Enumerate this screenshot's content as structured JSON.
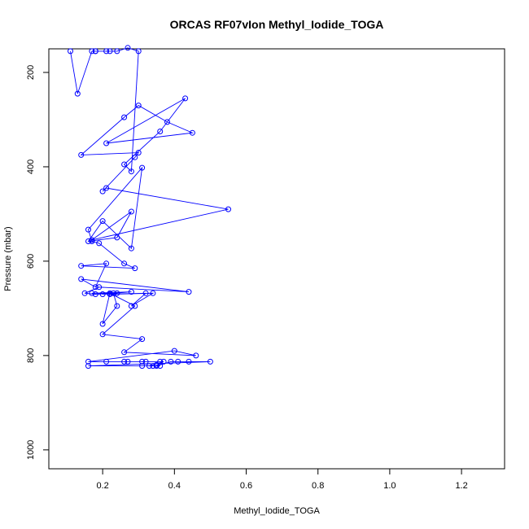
{
  "chart_data": {
    "type": "scatter",
    "title": "ORCAS RF07vIon Methyl_Iodide_TOGA",
    "xlabel": "Methyl_Iodide_TOGA",
    "ylabel": "Pressure (mbar)",
    "xlim": [
      0.05,
      1.32
    ],
    "ylim": [
      1040,
      150
    ],
    "xticks": [
      0.2,
      0.4,
      0.6,
      0.8,
      1.0,
      1.2
    ],
    "xtick_labels": [
      "0.2",
      "0.4",
      "0.6",
      "0.8",
      "1.0",
      "1.2"
    ],
    "yticks": [
      200,
      400,
      600,
      800,
      1000
    ],
    "ytick_labels": [
      "200",
      "400",
      "600",
      "800",
      "1000"
    ],
    "grid": false,
    "legend": "none",
    "series_color": "#0000ff",
    "series": [
      {
        "x": [
          0.11,
          0.13,
          0.17,
          0.18,
          0.21,
          0.18,
          0.22,
          0.24,
          0.27,
          0.3,
          0.28,
          0.26,
          0.36,
          0.43,
          0.21,
          0.45,
          0.38,
          0.3,
          0.26,
          0.14,
          0.3,
          0.29,
          0.2,
          0.21,
          0.55,
          0.17,
          0.28,
          0.24,
          0.16,
          0.2,
          0.28,
          0.31,
          0.16,
          0.17,
          0.19,
          0.26,
          0.29,
          0.14,
          0.21,
          0.18,
          0.14,
          0.44,
          0.19,
          0.15,
          0.18,
          0.24,
          0.17,
          0.28,
          0.2,
          0.32,
          0.28,
          0.34,
          0.22,
          0.23,
          0.24,
          0.2,
          0.22,
          0.29,
          0.2,
          0.31,
          0.26,
          0.46,
          0.4,
          0.16,
          0.21,
          0.27,
          0.32,
          0.26,
          0.31,
          0.36,
          0.37,
          0.33,
          0.35,
          0.39,
          0.44,
          0.41,
          0.5,
          0.16,
          0.31,
          0.34,
          0.36,
          0.35
        ],
        "y": [
          155,
          245,
          155,
          155,
          155,
          155,
          155,
          155,
          148,
          155,
          410,
          395,
          325,
          255,
          350,
          328,
          305,
          270,
          295,
          375,
          370,
          380,
          452,
          445,
          490,
          555,
          495,
          550,
          558,
          515,
          573,
          402,
          533,
          558,
          562,
          605,
          615,
          610,
          605,
          655,
          638,
          665,
          655,
          668,
          670,
          668,
          668,
          665,
          670,
          668,
          695,
          668,
          670,
          668,
          695,
          733,
          668,
          695,
          755,
          765,
          793,
          800,
          790,
          813,
          813,
          813,
          813,
          813,
          813,
          813,
          813,
          822,
          822,
          813,
          813,
          813,
          813,
          822,
          822,
          822,
          822,
          820
        ]
      }
    ]
  }
}
